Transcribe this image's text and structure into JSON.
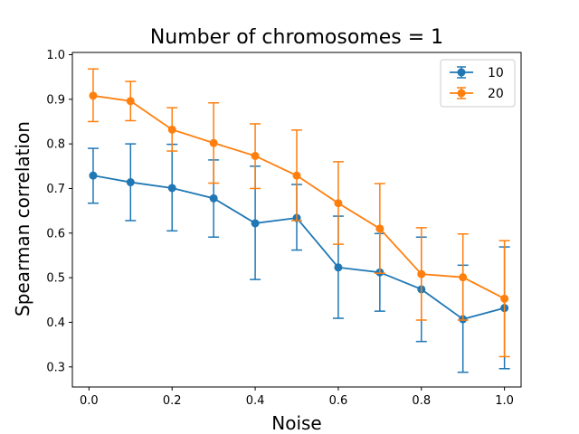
{
  "chart_data": {
    "type": "line",
    "title": "Number of chromosomes = 1",
    "xlabel": "Noise",
    "ylabel": "Spearman correlation",
    "xlim": [
      -0.04,
      1.04
    ],
    "ylim": [
      0.255,
      1.005
    ],
    "xticks": [
      0.0,
      0.2,
      0.4,
      0.6,
      0.8,
      1.0
    ],
    "xtick_labels": [
      "0.0",
      "0.2",
      "0.4",
      "0.6",
      "0.8",
      "1.0"
    ],
    "yticks": [
      0.3,
      0.4,
      0.5,
      0.6,
      0.7,
      0.8,
      0.9,
      1.0
    ],
    "ytick_labels": [
      "0.3",
      "0.4",
      "0.5",
      "0.6",
      "0.7",
      "0.8",
      "0.9",
      "1.0"
    ],
    "legend_position": "top-right",
    "grid": false,
    "x": [
      0.01,
      0.1,
      0.2,
      0.3,
      0.4,
      0.5,
      0.6,
      0.7,
      0.8,
      0.9,
      1.0
    ],
    "series": [
      {
        "name": "10",
        "color": "#1f77b4",
        "values": [
          0.729,
          0.714,
          0.701,
          0.678,
          0.622,
          0.634,
          0.523,
          0.512,
          0.474,
          0.407,
          0.432
        ],
        "err_low": [
          0.667,
          0.628,
          0.605,
          0.591,
          0.496,
          0.562,
          0.409,
          0.425,
          0.357,
          0.288,
          0.296
        ],
        "err_high": [
          0.79,
          0.8,
          0.799,
          0.764,
          0.75,
          0.709,
          0.638,
          0.599,
          0.591,
          0.528,
          0.569
        ]
      },
      {
        "name": "20",
        "color": "#ff7f0e",
        "values": [
          0.908,
          0.896,
          0.832,
          0.802,
          0.773,
          0.729,
          0.667,
          0.61,
          0.508,
          0.501,
          0.453
        ],
        "err_low": [
          0.85,
          0.852,
          0.784,
          0.712,
          0.7,
          0.628,
          0.575,
          0.51,
          0.405,
          0.405,
          0.323
        ],
        "err_high": [
          0.968,
          0.94,
          0.881,
          0.892,
          0.845,
          0.831,
          0.76,
          0.711,
          0.612,
          0.598,
          0.583
        ]
      }
    ]
  }
}
